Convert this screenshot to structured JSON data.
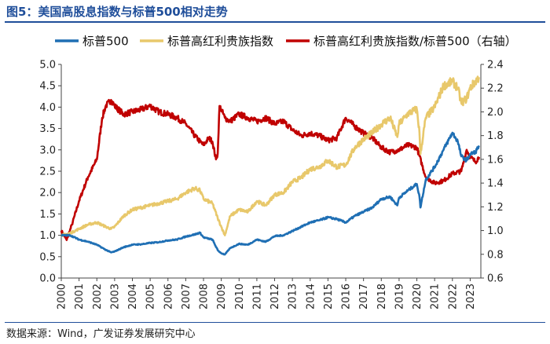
{
  "figure": {
    "title": "图5：美国高股息指数与标普500相对走势",
    "source": "数据来源：Wind，广发证券发展研究中心"
  },
  "colors": {
    "sp500": "#1f6fb4",
    "high_div": "#e8c86b",
    "ratio": "#c00000",
    "title": "#1f4e9a",
    "axis": "#444444"
  },
  "chart_data": {
    "type": "line",
    "title": "美国高股息指数与标普500相对走势",
    "x_ticks": [
      "2000",
      "2001",
      "2002",
      "2003",
      "2004",
      "2005",
      "2006",
      "2007",
      "2008",
      "2009",
      "2010",
      "2011",
      "2012",
      "2013",
      "2014",
      "2015",
      "2016",
      "2017",
      "2018",
      "2019",
      "2020",
      "2021",
      "2022",
      "2023"
    ],
    "xlim": [
      2000,
      2023.6
    ],
    "y_left": {
      "ticks": [
        "0.0",
        "0.5",
        "1.0",
        "1.5",
        "2.0",
        "2.5",
        "3.0",
        "3.5",
        "4.0",
        "4.5",
        "5.0"
      ],
      "ylim": [
        0,
        5
      ]
    },
    "y_right": {
      "ticks": [
        "0.6",
        "0.8",
        "1.0",
        "1.2",
        "1.4",
        "1.6",
        "1.8",
        "2.0",
        "2.2",
        "2.4"
      ],
      "ylim": [
        0.6,
        2.4
      ]
    },
    "legend_position": "top",
    "series": [
      {
        "name": "标普500",
        "axis": "left",
        "x": [
          2000,
          2000.5,
          2001,
          2001.5,
          2002,
          2002.5,
          2002.8,
          2003,
          2003.5,
          2004,
          2004.5,
          2005,
          2005.5,
          2006,
          2006.5,
          2007,
          2007.5,
          2007.8,
          2008,
          2008.5,
          2008.8,
          2009,
          2009.2,
          2009.5,
          2010,
          2010.5,
          2011,
          2011.5,
          2012,
          2012.5,
          2013,
          2013.5,
          2014,
          2014.5,
          2015,
          2015.5,
          2016,
          2016.5,
          2017,
          2017.5,
          2018,
          2018.5,
          2018.9,
          2019,
          2019.5,
          2020,
          2020.15,
          2020.2,
          2020.5,
          2021,
          2021.5,
          2022,
          2022.3,
          2022.5,
          2022.8,
          2023,
          2023.3,
          2023.5
        ],
        "values": [
          1.0,
          1.0,
          0.9,
          0.85,
          0.78,
          0.66,
          0.6,
          0.62,
          0.72,
          0.78,
          0.79,
          0.82,
          0.84,
          0.88,
          0.9,
          0.97,
          1.02,
          1.06,
          0.95,
          0.9,
          0.65,
          0.58,
          0.55,
          0.7,
          0.8,
          0.78,
          0.9,
          0.85,
          0.98,
          1.0,
          1.1,
          1.2,
          1.3,
          1.35,
          1.42,
          1.38,
          1.3,
          1.45,
          1.55,
          1.65,
          1.85,
          1.9,
          1.7,
          1.88,
          2.05,
          2.2,
          1.9,
          1.65,
          2.3,
          2.6,
          3.0,
          3.4,
          3.2,
          2.85,
          2.75,
          2.9,
          2.95,
          3.1
        ]
      },
      {
        "name": "标普高红利贵族指数",
        "axis": "left",
        "x": [
          2000,
          2000.5,
          2001,
          2001.5,
          2002,
          2002.5,
          2002.8,
          2003,
          2003.5,
          2004,
          2004.5,
          2005,
          2005.5,
          2006,
          2006.5,
          2007,
          2007.5,
          2007.8,
          2008,
          2008.5,
          2008.8,
          2009,
          2009.2,
          2009.5,
          2010,
          2010.5,
          2011,
          2011.5,
          2012,
          2012.5,
          2013,
          2013.5,
          2014,
          2014.5,
          2015,
          2015.5,
          2016,
          2016.5,
          2017,
          2017.5,
          2018,
          2018.5,
          2018.9,
          2019,
          2019.5,
          2020,
          2020.15,
          2020.2,
          2020.5,
          2021,
          2021.5,
          2022,
          2022.3,
          2022.5,
          2022.8,
          2023,
          2023.3,
          2023.5
        ],
        "values": [
          1.0,
          1.05,
          1.15,
          1.25,
          1.3,
          1.2,
          1.15,
          1.2,
          1.45,
          1.6,
          1.65,
          1.7,
          1.75,
          1.8,
          1.85,
          2.0,
          2.1,
          2.05,
          1.85,
          1.75,
          1.4,
          1.2,
          1.0,
          1.45,
          1.6,
          1.55,
          1.8,
          1.7,
          1.95,
          2.0,
          2.25,
          2.35,
          2.55,
          2.6,
          2.75,
          2.6,
          2.65,
          3.05,
          3.25,
          3.4,
          3.6,
          3.75,
          3.3,
          3.6,
          3.85,
          3.95,
          3.4,
          2.9,
          3.75,
          4.0,
          4.5,
          4.6,
          4.45,
          4.1,
          4.2,
          4.45,
          4.6,
          4.7
        ]
      },
      {
        "name": "标普高红利贵族指数/标普500（右轴）",
        "axis": "right",
        "x": [
          2000,
          2000.3,
          2000.6,
          2001,
          2001.5,
          2002,
          2002.3,
          2002.5,
          2002.8,
          2003,
          2003.5,
          2004,
          2004.5,
          2005,
          2005.5,
          2006,
          2006.5,
          2007,
          2007.5,
          2007.8,
          2008,
          2008.3,
          2008.5,
          2008.7,
          2008.8,
          2008.9,
          2009,
          2009.2,
          2009.5,
          2010,
          2010.5,
          2011,
          2011.5,
          2012,
          2012.5,
          2013,
          2013.5,
          2014,
          2014.5,
          2015,
          2015.5,
          2016,
          2016.5,
          2017,
          2017.5,
          2018,
          2018.5,
          2019,
          2019.5,
          2020,
          2020.5,
          2021,
          2021.5,
          2022,
          2022.5,
          2022.8,
          2023,
          2023.3,
          2023.5
        ],
        "values": [
          1.0,
          0.92,
          1.05,
          1.25,
          1.45,
          1.6,
          1.95,
          2.05,
          2.1,
          2.05,
          1.98,
          2.0,
          2.02,
          2.05,
          2.0,
          1.98,
          1.95,
          1.9,
          1.8,
          1.75,
          1.72,
          1.78,
          1.75,
          1.6,
          1.65,
          2.05,
          2.02,
          1.95,
          1.92,
          1.98,
          1.95,
          1.92,
          1.95,
          1.9,
          1.92,
          1.85,
          1.8,
          1.82,
          1.8,
          1.76,
          1.78,
          1.95,
          1.88,
          1.82,
          1.78,
          1.7,
          1.66,
          1.68,
          1.72,
          1.7,
          1.45,
          1.4,
          1.42,
          1.48,
          1.5,
          1.68,
          1.62,
          1.58,
          1.62
        ]
      }
    ]
  }
}
